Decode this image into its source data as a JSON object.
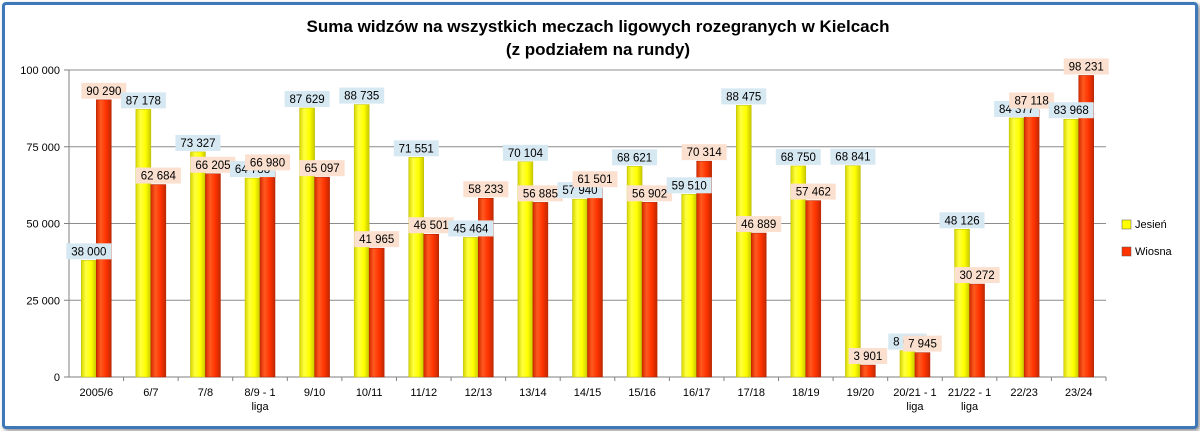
{
  "chart_data": {
    "type": "bar",
    "title": "Suma widzów na wszystkich meczach ligowych rozegranych w Kielcach",
    "subtitle": "(z podziałem na rundy)",
    "categories": [
      "2005/6",
      "6/7",
      "7/8",
      "8/9 - 1 liga",
      "9/10",
      "10/11",
      "11/12",
      "12/13",
      "13/14",
      "14/15",
      "15/16",
      "16/17",
      "17/18",
      "18/19",
      "19/20",
      "20/21 - 1 liga",
      "21/22 - 1 liga",
      "22/23",
      "23/24"
    ],
    "category_lines": [
      [
        "2005/6"
      ],
      [
        "6/7"
      ],
      [
        "7/8"
      ],
      [
        "8/9 - 1",
        "liga"
      ],
      [
        "9/10"
      ],
      [
        "10/11"
      ],
      [
        "11/12"
      ],
      [
        "12/13"
      ],
      [
        "13/14"
      ],
      [
        "14/15"
      ],
      [
        "15/16"
      ],
      [
        "16/17"
      ],
      [
        "17/18"
      ],
      [
        "18/19"
      ],
      [
        "19/20"
      ],
      [
        "20/21 - 1",
        "liga"
      ],
      [
        "21/22 - 1",
        "liga"
      ],
      [
        "22/23"
      ],
      [
        "23/24"
      ]
    ],
    "series": [
      {
        "name": "Jesień",
        "color": "#ffff00",
        "label_bg": "#d6e8f2",
        "values": [
          38000,
          87178,
          73327,
          64788,
          87629,
          88735,
          71551,
          45464,
          70104,
          57940,
          68621,
          59510,
          88475,
          68750,
          68841,
          8615,
          48126,
          84377,
          83968
        ],
        "labels": [
          "38 000",
          "87 178",
          "73 327",
          "64 788",
          "87 629",
          "88 735",
          "71 551",
          "45 464",
          "70 104",
          "57 940",
          "68 621",
          "59 510",
          "88 475",
          "68 750",
          "68 841",
          "8 615",
          "48 126",
          "84 377",
          "83 968"
        ]
      },
      {
        "name": "Wiosna",
        "color": "#ff3300",
        "label_bg": "#fbe0cf",
        "values": [
          90290,
          62684,
          66205,
          66980,
          65097,
          41965,
          46501,
          58233,
          56885,
          61501,
          56902,
          70314,
          46889,
          57462,
          3901,
          7945,
          30272,
          87118,
          98231
        ],
        "labels": [
          "90 290",
          "62 684",
          "66 205",
          "66 980",
          "65 097",
          "41 965",
          "46 501",
          "58 233",
          "56 885",
          "61 501",
          "56 902",
          "70 314",
          "46 889",
          "57 462",
          "3 901",
          "7 945",
          "30 272",
          "87 118",
          "98 231"
        ]
      }
    ],
    "yticks": [
      0,
      25000,
      50000,
      75000,
      100000
    ],
    "ytick_labels": [
      "0",
      "25 000",
      "50 000",
      "75 000",
      "100 000"
    ],
    "ylim": [
      0,
      100000
    ],
    "xlabel": "",
    "ylabel": "",
    "grid": true,
    "legend_position": "right"
  }
}
